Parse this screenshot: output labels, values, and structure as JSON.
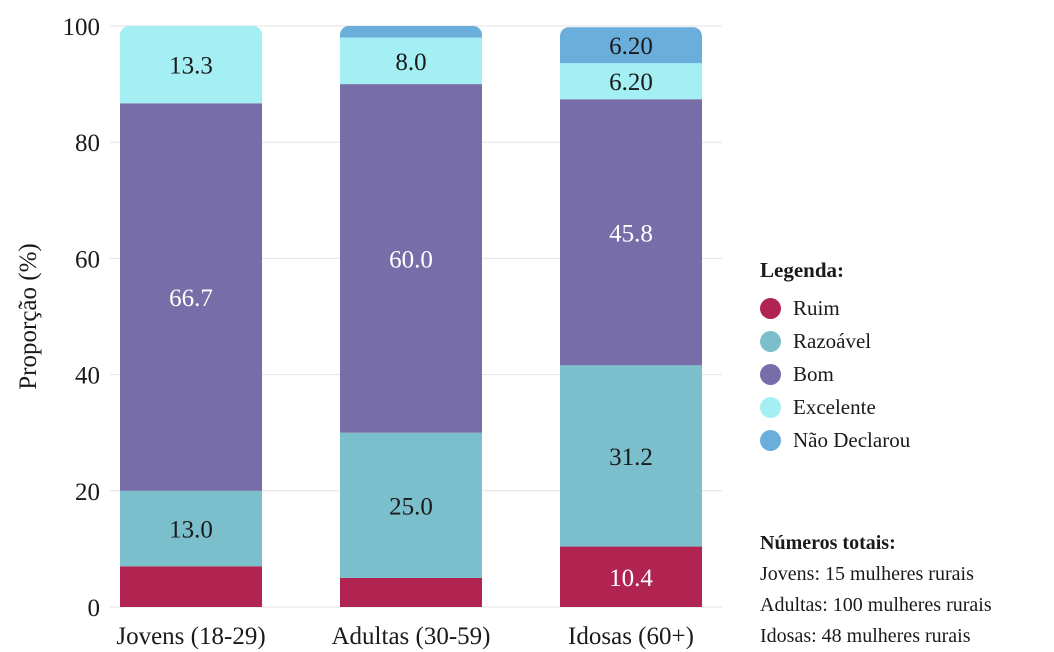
{
  "chart_data": {
    "type": "bar",
    "stacked": true,
    "categories": [
      "Jovens (18-29)",
      "Adultas (30-59)",
      "Idosas (60+)"
    ],
    "ylabel": "Proporção (%)",
    "ylim": [
      0,
      100
    ],
    "yticks": [
      0,
      20,
      40,
      60,
      80,
      100
    ],
    "grid": true,
    "series": [
      {
        "name": "Ruim",
        "color": "#b12350",
        "values": [
          7.0,
          5.0,
          10.4
        ],
        "labels": [
          "",
          "",
          "10.4"
        ]
      },
      {
        "name": "Razoável",
        "color": "#7cbfcc",
        "values": [
          13.0,
          25.0,
          31.2
        ],
        "labels": [
          "13.0",
          "25.0",
          "31.2"
        ]
      },
      {
        "name": "Bom",
        "color": "#776ea9",
        "values": [
          66.7,
          60.0,
          45.8
        ],
        "labels": [
          "66.7",
          "60.0",
          "45.8"
        ]
      },
      {
        "name": "Excelente",
        "color": "#a3eff3",
        "values": [
          13.3,
          8.0,
          6.2
        ],
        "labels": [
          "13.3",
          "8.0",
          "6.20"
        ]
      },
      {
        "name": "Não Declarou",
        "color": "#6aaedb",
        "values": [
          0.0,
          2.0,
          6.2
        ],
        "labels": [
          "",
          "",
          "6.20"
        ]
      }
    ]
  },
  "legend": {
    "title": "Legenda:",
    "items": [
      {
        "label": "Ruim",
        "color": "#b12350"
      },
      {
        "label": "Razoável",
        "color": "#7cbfcc"
      },
      {
        "label": "Bom",
        "color": "#776ea9"
      },
      {
        "label": "Excelente",
        "color": "#a3eff3"
      },
      {
        "label": "Não Declarou",
        "color": "#6aaedb"
      }
    ]
  },
  "totals": {
    "title": "Números totais:",
    "lines": [
      "Jovens: 15 mulheres rurais",
      "Adultas: 100 mulheres rurais",
      "Idosas: 48 mulheres rurais"
    ]
  }
}
